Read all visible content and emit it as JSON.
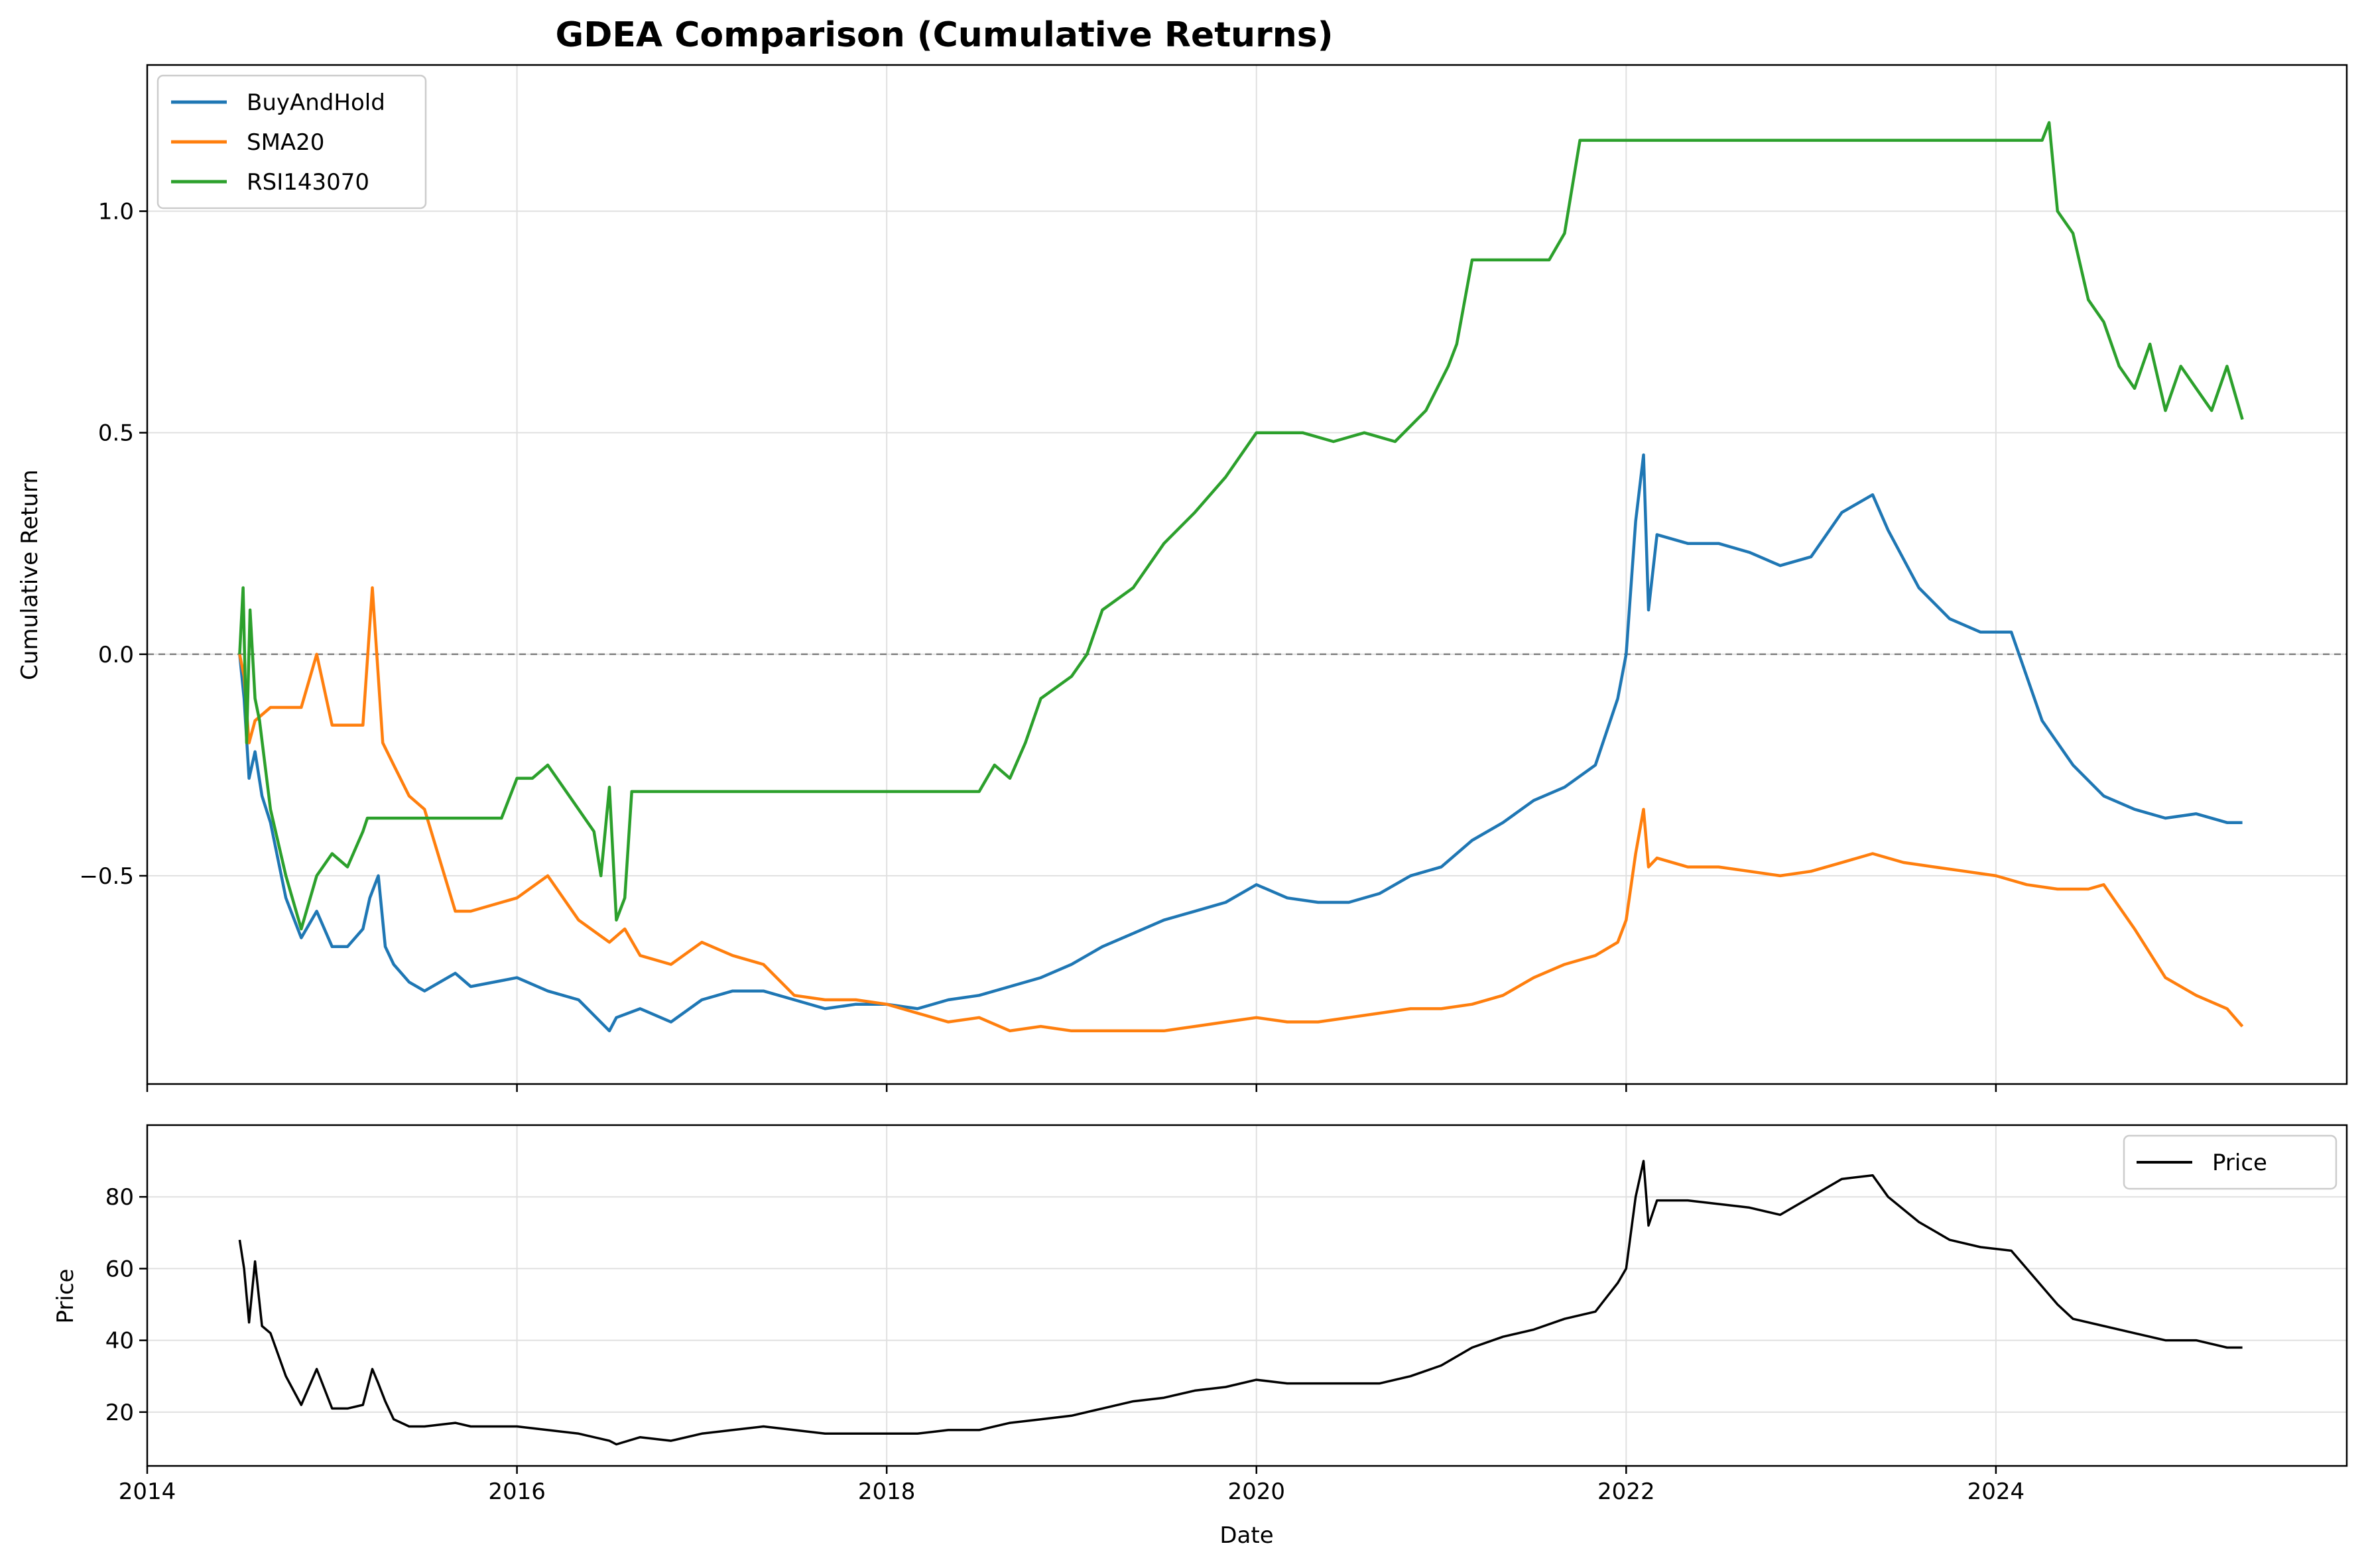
{
  "figure_title": "GDEA Comparison (Cumulative Returns)",
  "colors": {
    "BuyAndHold": "#1f77b4",
    "SMA20": "#ff7f0e",
    "RSI143070": "#2ca02c",
    "Price": "#000000",
    "zero_line": "#808080",
    "grid": "#e0e0e0"
  },
  "chart_data": [
    {
      "type": "line",
      "title": "GDEA Comparison (Cumulative Returns)",
      "xlabel": "",
      "ylabel": "Cumulative Return",
      "x_ticks": [
        "2014",
        "2016",
        "2018",
        "2020",
        "2022",
        "2024"
      ],
      "y_ticks": [
        -0.5,
        0.0,
        0.5,
        1.0
      ],
      "y_tick_labels": [
        "−0.5",
        "0.0",
        "0.5",
        "1.0"
      ],
      "xlim": [
        "2014-01-01",
        "2025-11-25"
      ],
      "ylim": [
        -0.97,
        1.33
      ],
      "grid": true,
      "legend_position": "upper left",
      "reference_line": 0.0,
      "series": [
        {
          "name": "BuyAndHold",
          "x": [
            "2014-07-01",
            "2014-07-10",
            "2014-07-20",
            "2014-08-01",
            "2014-08-15",
            "2014-09-01",
            "2014-10-01",
            "2014-11-01",
            "2014-12-01",
            "2015-01-01",
            "2015-02-01",
            "2015-03-01",
            "2015-03-15",
            "2015-04-01",
            "2015-04-15",
            "2015-05-01",
            "2015-06-01",
            "2015-07-01",
            "2015-09-01",
            "2015-10-01",
            "2016-01-01",
            "2016-03-01",
            "2016-05-01",
            "2016-07-01",
            "2016-07-15",
            "2016-09-01",
            "2016-11-01",
            "2017-01-01",
            "2017-03-01",
            "2017-05-01",
            "2017-07-01",
            "2017-09-01",
            "2017-11-01",
            "2018-01-01",
            "2018-03-01",
            "2018-05-01",
            "2018-07-01",
            "2018-09-01",
            "2018-11-01",
            "2019-01-01",
            "2019-03-01",
            "2019-05-01",
            "2019-07-01",
            "2019-09-01",
            "2019-11-01",
            "2020-01-01",
            "2020-03-01",
            "2020-05-01",
            "2020-07-01",
            "2020-09-01",
            "2020-11-01",
            "2021-01-01",
            "2021-03-01",
            "2021-05-01",
            "2021-07-01",
            "2021-09-01",
            "2021-11-01",
            "2021-12-15",
            "2022-01-01",
            "2022-01-20",
            "2022-02-05",
            "2022-02-15",
            "2022-03-01",
            "2022-05-01",
            "2022-07-01",
            "2022-09-01",
            "2022-11-01",
            "2023-01-01",
            "2023-03-01",
            "2023-05-01",
            "2023-06-01",
            "2023-08-01",
            "2023-10-01",
            "2023-12-01",
            "2024-02-01",
            "2024-04-01",
            "2024-05-01",
            "2024-06-01",
            "2024-08-01",
            "2024-10-01",
            "2024-12-01",
            "2025-02-01",
            "2025-04-01",
            "2025-05-01"
          ],
          "values": [
            0.0,
            -0.1,
            -0.28,
            -0.22,
            -0.32,
            -0.38,
            -0.55,
            -0.64,
            -0.58,
            -0.66,
            -0.66,
            -0.62,
            -0.55,
            -0.5,
            -0.66,
            -0.7,
            -0.74,
            -0.76,
            -0.72,
            -0.75,
            -0.73,
            -0.76,
            -0.78,
            -0.85,
            -0.82,
            -0.8,
            -0.83,
            -0.78,
            -0.76,
            -0.76,
            -0.78,
            -0.8,
            -0.79,
            -0.79,
            -0.8,
            -0.78,
            -0.77,
            -0.75,
            -0.73,
            -0.7,
            -0.66,
            -0.63,
            -0.6,
            -0.58,
            -0.56,
            -0.52,
            -0.55,
            -0.56,
            -0.56,
            -0.54,
            -0.5,
            -0.48,
            -0.42,
            -0.38,
            -0.33,
            -0.3,
            -0.25,
            -0.1,
            0.0,
            0.3,
            0.45,
            0.1,
            0.27,
            0.25,
            0.25,
            0.23,
            0.2,
            0.22,
            0.32,
            0.36,
            0.28,
            0.15,
            0.08,
            0.05,
            0.05,
            -0.15,
            -0.2,
            -0.25,
            -0.32,
            -0.35,
            -0.37,
            -0.36,
            -0.38,
            -0.38
          ]
        },
        {
          "name": "SMA20",
          "x": [
            "2014-07-01",
            "2014-07-10",
            "2014-07-20",
            "2014-08-01",
            "2014-09-01",
            "2014-11-01",
            "2014-12-01",
            "2015-01-01",
            "2015-02-01",
            "2015-03-01",
            "2015-03-20",
            "2015-04-10",
            "2015-05-01",
            "2015-06-01",
            "2015-07-01",
            "2015-09-01",
            "2015-10-01",
            "2016-01-01",
            "2016-03-01",
            "2016-05-01",
            "2016-07-01",
            "2016-08-01",
            "2016-09-01",
            "2016-11-01",
            "2017-01-01",
            "2017-03-01",
            "2017-05-01",
            "2017-07-01",
            "2017-09-01",
            "2017-11-01",
            "2018-01-01",
            "2018-03-01",
            "2018-05-01",
            "2018-07-01",
            "2018-09-01",
            "2018-11-01",
            "2019-01-01",
            "2019-03-01",
            "2019-05-01",
            "2019-07-01",
            "2019-09-01",
            "2019-11-01",
            "2020-01-01",
            "2020-03-01",
            "2020-05-01",
            "2020-07-01",
            "2020-09-01",
            "2020-11-01",
            "2021-01-01",
            "2021-03-01",
            "2021-05-01",
            "2021-07-01",
            "2021-09-01",
            "2021-11-01",
            "2021-12-15",
            "2022-01-01",
            "2022-01-20",
            "2022-02-05",
            "2022-02-15",
            "2022-03-01",
            "2022-05-01",
            "2022-07-01",
            "2022-09-01",
            "2022-11-01",
            "2023-01-01",
            "2023-03-01",
            "2023-05-01",
            "2023-07-01",
            "2023-09-01",
            "2023-11-01",
            "2024-01-01",
            "2024-03-01",
            "2024-05-01",
            "2024-07-01",
            "2024-08-01",
            "2024-10-01",
            "2024-12-01",
            "2025-02-01",
            "2025-04-01",
            "2025-05-01"
          ],
          "values": [
            0.0,
            -0.05,
            -0.2,
            -0.15,
            -0.12,
            -0.12,
            0.0,
            -0.16,
            -0.16,
            -0.16,
            0.15,
            -0.2,
            -0.25,
            -0.32,
            -0.35,
            -0.58,
            -0.58,
            -0.55,
            -0.5,
            -0.6,
            -0.65,
            -0.62,
            -0.68,
            -0.7,
            -0.65,
            -0.68,
            -0.7,
            -0.77,
            -0.78,
            -0.78,
            -0.79,
            -0.81,
            -0.83,
            -0.82,
            -0.85,
            -0.84,
            -0.85,
            -0.85,
            -0.85,
            -0.85,
            -0.84,
            -0.83,
            -0.82,
            -0.83,
            -0.83,
            -0.82,
            -0.81,
            -0.8,
            -0.8,
            -0.79,
            -0.77,
            -0.73,
            -0.7,
            -0.68,
            -0.65,
            -0.6,
            -0.45,
            -0.35,
            -0.48,
            -0.46,
            -0.48,
            -0.48,
            -0.49,
            -0.5,
            -0.49,
            -0.47,
            -0.45,
            -0.47,
            -0.48,
            -0.49,
            -0.5,
            -0.52,
            -0.53,
            -0.53,
            -0.52,
            -0.62,
            -0.73,
            -0.77,
            -0.8,
            -0.84
          ]
        },
        {
          "name": "RSI143070",
          "x": [
            "2014-07-01",
            "2014-07-08",
            "2014-07-15",
            "2014-07-22",
            "2014-08-01",
            "2014-08-10",
            "2014-09-01",
            "2014-10-01",
            "2014-11-01",
            "2014-12-01",
            "2015-01-01",
            "2015-02-01",
            "2015-03-01",
            "2015-03-10",
            "2015-04-01",
            "2015-06-01",
            "2015-08-01",
            "2015-10-01",
            "2015-12-01",
            "2016-01-01",
            "2016-02-01",
            "2016-03-01",
            "2016-04-01",
            "2016-05-01",
            "2016-06-01",
            "2016-06-15",
            "2016-07-01",
            "2016-07-15",
            "2016-08-01",
            "2016-08-15",
            "2017-01-01",
            "2017-06-01",
            "2018-01-01",
            "2018-07-01",
            "2018-08-01",
            "2018-09-01",
            "2018-10-01",
            "2018-11-01",
            "2019-01-01",
            "2019-02-01",
            "2019-03-01",
            "2019-05-01",
            "2019-07-01",
            "2019-09-01",
            "2019-11-01",
            "2020-01-01",
            "2020-02-01",
            "2020-03-01",
            "2020-04-01",
            "2020-06-01",
            "2020-08-01",
            "2020-10-01",
            "2020-12-01",
            "2021-01-15",
            "2021-02-01",
            "2021-03-01",
            "2021-05-01",
            "2021-07-01",
            "2021-08-01",
            "2021-09-01",
            "2021-10-01",
            "2022-01-01",
            "2022-06-01",
            "2023-01-01",
            "2023-06-01",
            "2024-01-01",
            "2024-04-01",
            "2024-04-15",
            "2024-05-01",
            "2024-06-01",
            "2024-07-01",
            "2024-08-01",
            "2024-09-01",
            "2024-10-01",
            "2024-11-01",
            "2024-12-01",
            "2025-01-01",
            "2025-02-01",
            "2025-03-01",
            "2025-04-01",
            "2025-05-01"
          ],
          "values": [
            0.0,
            0.15,
            -0.2,
            0.1,
            -0.1,
            -0.15,
            -0.35,
            -0.5,
            -0.62,
            -0.5,
            -0.45,
            -0.48,
            -0.4,
            -0.37,
            -0.37,
            -0.37,
            -0.37,
            -0.37,
            -0.37,
            -0.28,
            -0.28,
            -0.25,
            -0.3,
            -0.35,
            -0.4,
            -0.5,
            -0.3,
            -0.6,
            -0.55,
            -0.31,
            -0.31,
            -0.31,
            -0.31,
            -0.31,
            -0.25,
            -0.28,
            -0.2,
            -0.1,
            -0.05,
            0.0,
            0.1,
            0.15,
            0.25,
            0.32,
            0.4,
            0.5,
            0.5,
            0.5,
            0.5,
            0.48,
            0.5,
            0.48,
            0.55,
            0.65,
            0.7,
            0.89,
            0.89,
            0.89,
            0.89,
            0.95,
            1.16,
            1.16,
            1.16,
            1.16,
            1.16,
            1.16,
            1.16,
            1.2,
            1.0,
            0.95,
            0.8,
            0.75,
            0.65,
            0.6,
            0.7,
            0.55,
            0.65,
            0.6,
            0.55,
            0.65,
            0.53
          ]
        }
      ]
    },
    {
      "type": "line",
      "title": "",
      "xlabel": "Date",
      "ylabel": "Price",
      "x_ticks": [
        "2014",
        "2016",
        "2018",
        "2020",
        "2022",
        "2024"
      ],
      "y_ticks": [
        20,
        40,
        60,
        80
      ],
      "xlim": [
        "2014-01-01",
        "2025-11-25"
      ],
      "ylim": [
        5,
        100
      ],
      "grid": true,
      "legend_position": "upper right",
      "series": [
        {
          "name": "Price",
          "x": [
            "2014-07-01",
            "2014-07-10",
            "2014-07-20",
            "2014-08-01",
            "2014-08-15",
            "2014-09-01",
            "2014-10-01",
            "2014-11-01",
            "2014-12-01",
            "2015-01-01",
            "2015-02-01",
            "2015-03-01",
            "2015-03-20",
            "2015-04-01",
            "2015-04-15",
            "2015-05-01",
            "2015-06-01",
            "2015-07-01",
            "2015-09-01",
            "2015-10-01",
            "2016-01-01",
            "2016-03-01",
            "2016-05-01",
            "2016-07-01",
            "2016-07-15",
            "2016-09-01",
            "2016-11-01",
            "2017-01-01",
            "2017-03-01",
            "2017-05-01",
            "2017-07-01",
            "2017-09-01",
            "2017-11-01",
            "2018-01-01",
            "2018-03-01",
            "2018-05-01",
            "2018-07-01",
            "2018-09-01",
            "2018-11-01",
            "2019-01-01",
            "2019-03-01",
            "2019-05-01",
            "2019-07-01",
            "2019-09-01",
            "2019-11-01",
            "2020-01-01",
            "2020-03-01",
            "2020-05-01",
            "2020-07-01",
            "2020-09-01",
            "2020-11-01",
            "2021-01-01",
            "2021-03-01",
            "2021-05-01",
            "2021-07-01",
            "2021-09-01",
            "2021-11-01",
            "2021-12-15",
            "2022-01-01",
            "2022-01-20",
            "2022-02-05",
            "2022-02-15",
            "2022-03-01",
            "2022-05-01",
            "2022-07-01",
            "2022-09-01",
            "2022-11-01",
            "2023-01-01",
            "2023-03-01",
            "2023-05-01",
            "2023-06-01",
            "2023-08-01",
            "2023-10-01",
            "2023-12-01",
            "2024-02-01",
            "2024-04-01",
            "2024-05-01",
            "2024-06-01",
            "2024-08-01",
            "2024-10-01",
            "2024-12-01",
            "2025-02-01",
            "2025-04-01",
            "2025-05-01"
          ],
          "values": [
            68,
            60,
            45,
            62,
            44,
            42,
            30,
            22,
            32,
            21,
            21,
            22,
            32,
            28,
            23,
            18,
            16,
            16,
            17,
            16,
            16,
            15,
            14,
            12,
            11,
            13,
            12,
            14,
            15,
            16,
            15,
            14,
            14,
            14,
            14,
            15,
            15,
            17,
            18,
            19,
            21,
            23,
            24,
            26,
            27,
            29,
            28,
            28,
            28,
            28,
            30,
            33,
            38,
            41,
            43,
            46,
            48,
            56,
            60,
            80,
            90,
            72,
            79,
            79,
            78,
            77,
            75,
            80,
            85,
            86,
            80,
            73,
            68,
            66,
            65,
            55,
            50,
            46,
            44,
            42,
            40,
            40,
            38,
            38
          ]
        }
      ]
    }
  ]
}
